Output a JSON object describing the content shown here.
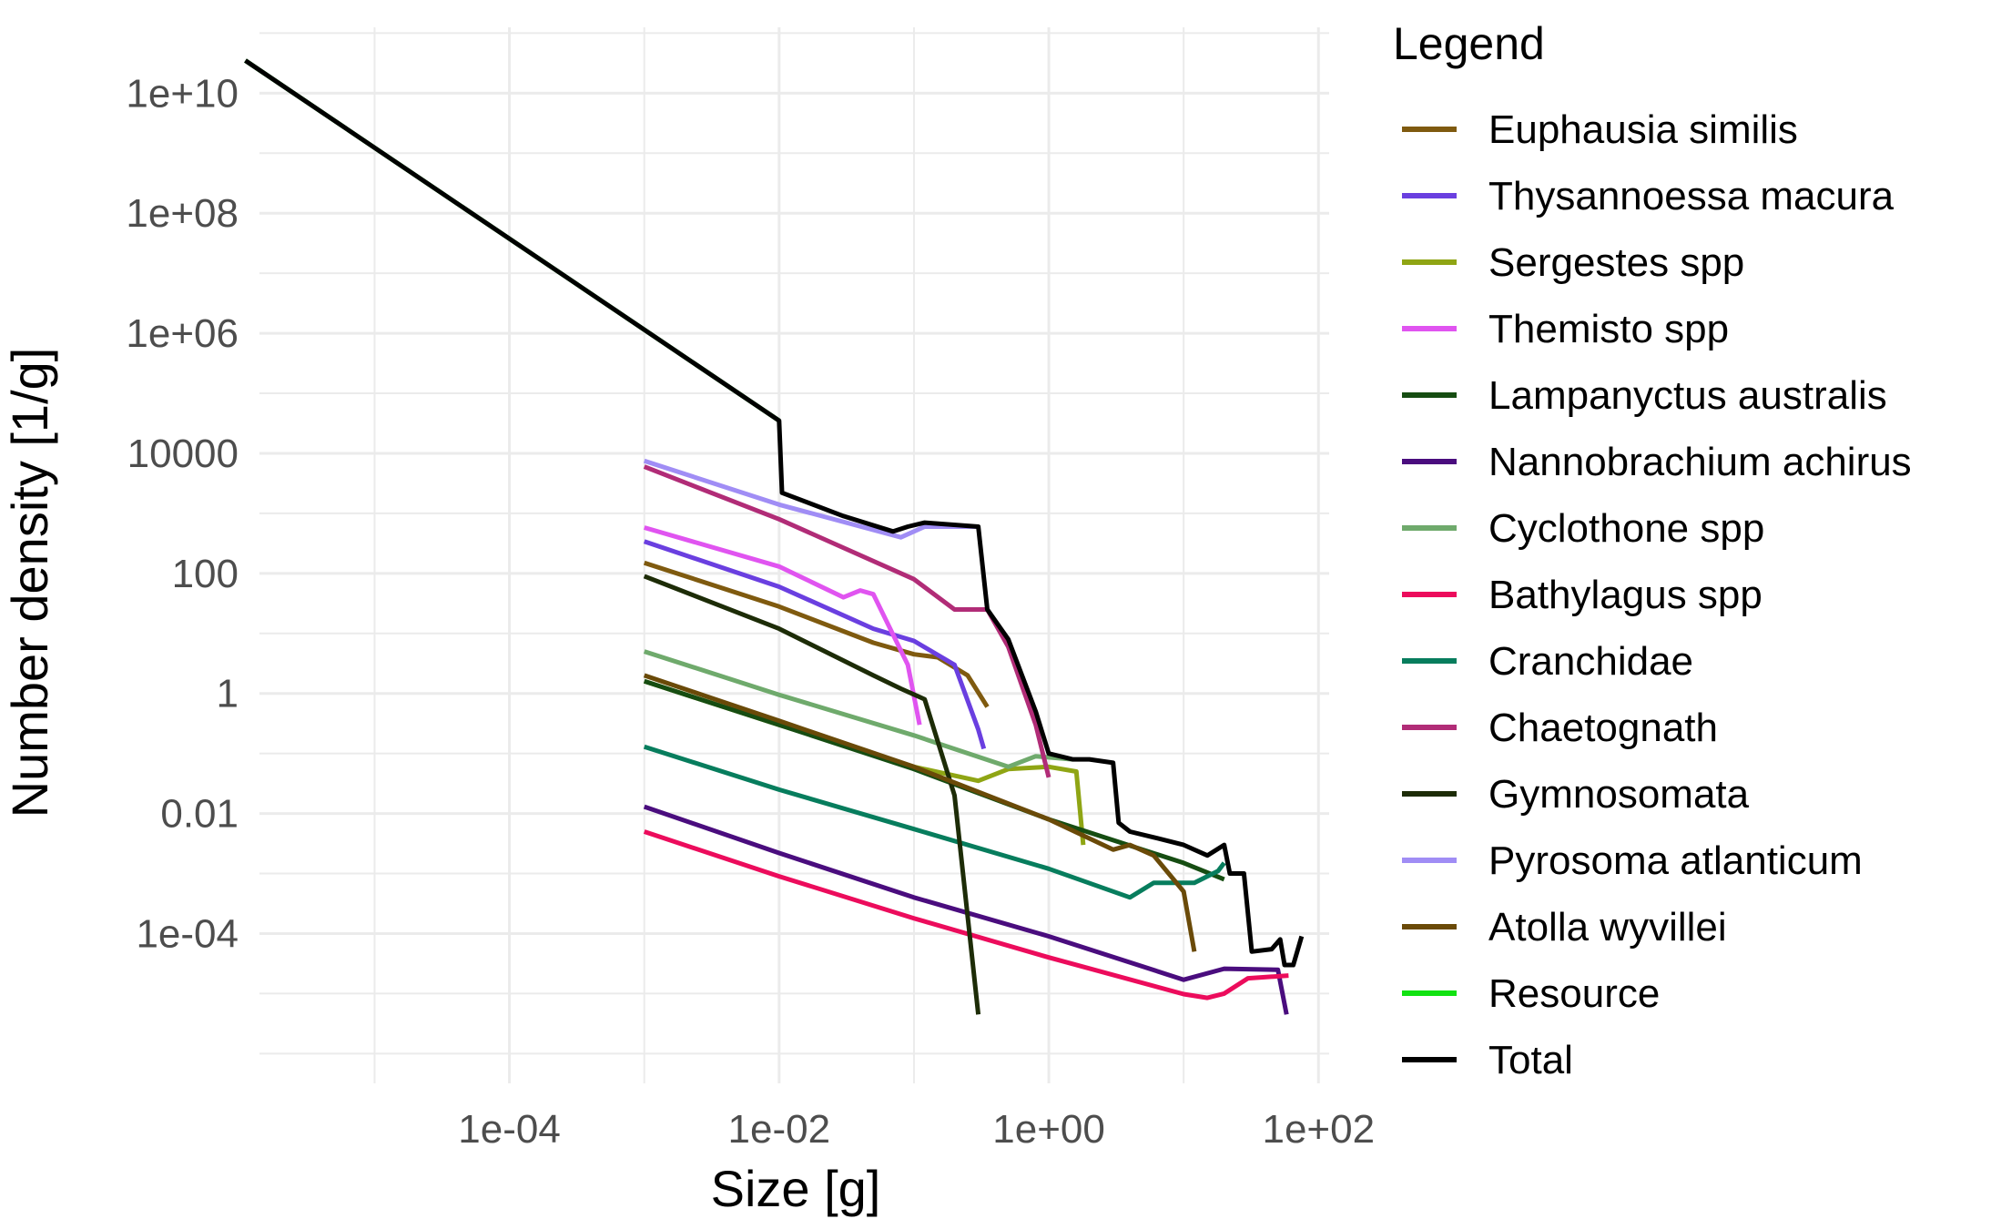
{
  "chart_data": {
    "type": "line",
    "title": "",
    "xlabel": "Size [g]",
    "ylabel": "Number density [1/g]",
    "x_scale": "log10",
    "y_scale": "log10",
    "xlim": [
      1.4e-06,
      120
    ],
    "ylim": [
      3.2e-07,
      125000000000.0
    ],
    "grid": true,
    "legend": {
      "title": "Legend",
      "position": "right"
    },
    "x_ticks": [
      {
        "value": 0.0001,
        "label": "1e-04"
      },
      {
        "value": 0.01,
        "label": "1e-02"
      },
      {
        "value": 1,
        "label": "1e+00"
      },
      {
        "value": 100,
        "label": "1e+02"
      }
    ],
    "y_ticks": [
      {
        "value": 10000000000.0,
        "label": "1e+10"
      },
      {
        "value": 100000000.0,
        "label": "1e+08"
      },
      {
        "value": 1000000.0,
        "label": "1e+06"
      },
      {
        "value": 10000,
        "label": "10000"
      },
      {
        "value": 100,
        "label": "100"
      },
      {
        "value": 1,
        "label": "1"
      },
      {
        "value": 0.01,
        "label": "0.01"
      },
      {
        "value": 0.0001,
        "label": "1e-04"
      }
    ],
    "series": [
      {
        "name": "Euphausia similis",
        "color": "#7f5a0f",
        "points": [
          [
            0.001,
            150
          ],
          [
            0.01,
            28
          ],
          [
            0.05,
            7
          ],
          [
            0.1,
            4.5
          ],
          [
            0.15,
            4
          ],
          [
            0.25,
            2
          ],
          [
            0.35,
            0.6
          ]
        ]
      },
      {
        "name": "Thysannoessa macura",
        "color": "#6a3fe0",
        "points": [
          [
            0.001,
            340
          ],
          [
            0.01,
            60
          ],
          [
            0.05,
            12
          ],
          [
            0.1,
            7.5
          ],
          [
            0.2,
            3
          ],
          [
            0.3,
            0.25
          ],
          [
            0.33,
            0.12
          ]
        ]
      },
      {
        "name": "Sergestes spp",
        "color": "#8fa514",
        "points": [
          [
            0.001,
            1.6
          ],
          [
            0.01,
            0.3
          ],
          [
            0.1,
            0.06
          ],
          [
            0.3,
            0.035
          ],
          [
            0.5,
            0.055
          ],
          [
            1,
            0.06
          ],
          [
            1.6,
            0.05
          ],
          [
            1.8,
            0.003
          ]
        ]
      },
      {
        "name": "Themisto spp",
        "color": "#e054f0",
        "points": [
          [
            0.001,
            580
          ],
          [
            0.01,
            130
          ],
          [
            0.03,
            40
          ],
          [
            0.04,
            52
          ],
          [
            0.05,
            45
          ],
          [
            0.09,
            3
          ],
          [
            0.11,
            0.3
          ]
        ]
      },
      {
        "name": "Lampanyctus australis",
        "color": "#164d12",
        "points": [
          [
            0.001,
            1.6
          ],
          [
            0.01,
            0.3
          ],
          [
            0.1,
            0.055
          ],
          [
            1,
            0.008
          ],
          [
            10,
            0.0015
          ],
          [
            20,
            0.0008
          ]
        ]
      },
      {
        "name": "Nannobrachium achirus",
        "color": "#4a0d7e",
        "points": [
          [
            0.001,
            0.013
          ],
          [
            0.01,
            0.0022
          ],
          [
            0.1,
            0.0004
          ],
          [
            1,
            9e-05
          ],
          [
            10,
            1.7e-05
          ],
          [
            20,
            2.6e-05
          ],
          [
            50,
            2.5e-05
          ],
          [
            58,
            4.5e-06
          ]
        ]
      },
      {
        "name": "Cyclothone spp",
        "color": "#6faa6c",
        "points": [
          [
            0.001,
            5
          ],
          [
            0.01,
            0.95
          ],
          [
            0.1,
            0.2
          ],
          [
            0.5,
            0.06
          ],
          [
            0.8,
            0.09
          ],
          [
            1.5,
            0.08
          ]
        ]
      },
      {
        "name": "Bathylagus spp",
        "color": "#ec0c5c",
        "points": [
          [
            0.001,
            0.005
          ],
          [
            0.01,
            0.0009
          ],
          [
            0.1,
            0.00018
          ],
          [
            1,
            4e-05
          ],
          [
            10,
            9.8e-06
          ],
          [
            15,
            8.5e-06
          ],
          [
            20,
            1e-05
          ],
          [
            30,
            1.8e-05
          ],
          [
            60,
            2e-05
          ]
        ]
      },
      {
        "name": "Cranchidae",
        "color": "#077d5d",
        "points": [
          [
            0.001,
            0.13
          ],
          [
            0.01,
            0.025
          ],
          [
            0.1,
            0.0055
          ],
          [
            1,
            0.0012
          ],
          [
            4,
            0.0004
          ],
          [
            6,
            0.0007
          ],
          [
            12,
            0.0007
          ],
          [
            18,
            0.0011
          ],
          [
            20,
            0.0015
          ]
        ]
      },
      {
        "name": "Chaetognath",
        "color": "#b12c77",
        "points": [
          [
            0.001,
            6000
          ],
          [
            0.01,
            800
          ],
          [
            0.1,
            80
          ],
          [
            0.2,
            25
          ],
          [
            0.35,
            25
          ],
          [
            0.5,
            6
          ],
          [
            0.8,
            0.3
          ],
          [
            1,
            0.04
          ]
        ]
      },
      {
        "name": "Gymnosomata",
        "color": "#1d2c07",
        "points": [
          [
            0.001,
            90
          ],
          [
            0.01,
            12
          ],
          [
            0.05,
            2
          ],
          [
            0.08,
            1.2
          ],
          [
            0.12,
            0.8
          ],
          [
            0.2,
            0.02
          ],
          [
            0.3,
            4.5e-06
          ]
        ]
      },
      {
        "name": "Pyrosoma atlanticum",
        "color": "#a08df5",
        "points": [
          [
            0.001,
            7500
          ],
          [
            0.01,
            1400
          ],
          [
            0.08,
            400
          ],
          [
            0.12,
            600
          ],
          [
            0.3,
            600
          ]
        ]
      },
      {
        "name": "Atolla wyvillei",
        "color": "#6a4a08",
        "points": [
          [
            0.001,
            2
          ],
          [
            0.01,
            0.35
          ],
          [
            0.1,
            0.06
          ],
          [
            1,
            0.008
          ],
          [
            3,
            0.0025
          ],
          [
            4,
            0.003
          ],
          [
            6,
            0.002
          ],
          [
            10,
            0.0005
          ],
          [
            12,
            5e-05
          ]
        ]
      },
      {
        "name": "Resource",
        "color": "#11e211",
        "points": [
          [
            1.1e-06,
            35000000000
          ],
          [
            0.01,
            35000
          ]
        ]
      },
      {
        "name": "Total",
        "color": "#000000",
        "points": [
          [
            1.1e-06,
            35000000000
          ],
          [
            0.01,
            35000
          ],
          [
            0.0105,
            2200
          ],
          [
            0.03,
            900
          ],
          [
            0.07,
            500
          ],
          [
            0.09,
            600
          ],
          [
            0.12,
            700
          ],
          [
            0.3,
            600
          ],
          [
            0.35,
            25
          ],
          [
            0.5,
            8
          ],
          [
            0.8,
            0.5
          ],
          [
            1,
            0.1
          ],
          [
            1.5,
            0.08
          ],
          [
            2,
            0.08
          ],
          [
            3,
            0.07
          ],
          [
            3.3,
            0.007
          ],
          [
            4,
            0.005
          ],
          [
            6,
            0.004
          ],
          [
            10,
            0.003
          ],
          [
            15,
            0.002
          ],
          [
            20,
            0.003
          ],
          [
            22,
            0.001
          ],
          [
            28,
            0.001
          ],
          [
            32,
            5e-05
          ],
          [
            45,
            5.5e-05
          ],
          [
            52,
            8e-05
          ],
          [
            56,
            3e-05
          ],
          [
            65,
            3e-05
          ],
          [
            75,
            9e-05
          ]
        ]
      }
    ]
  }
}
